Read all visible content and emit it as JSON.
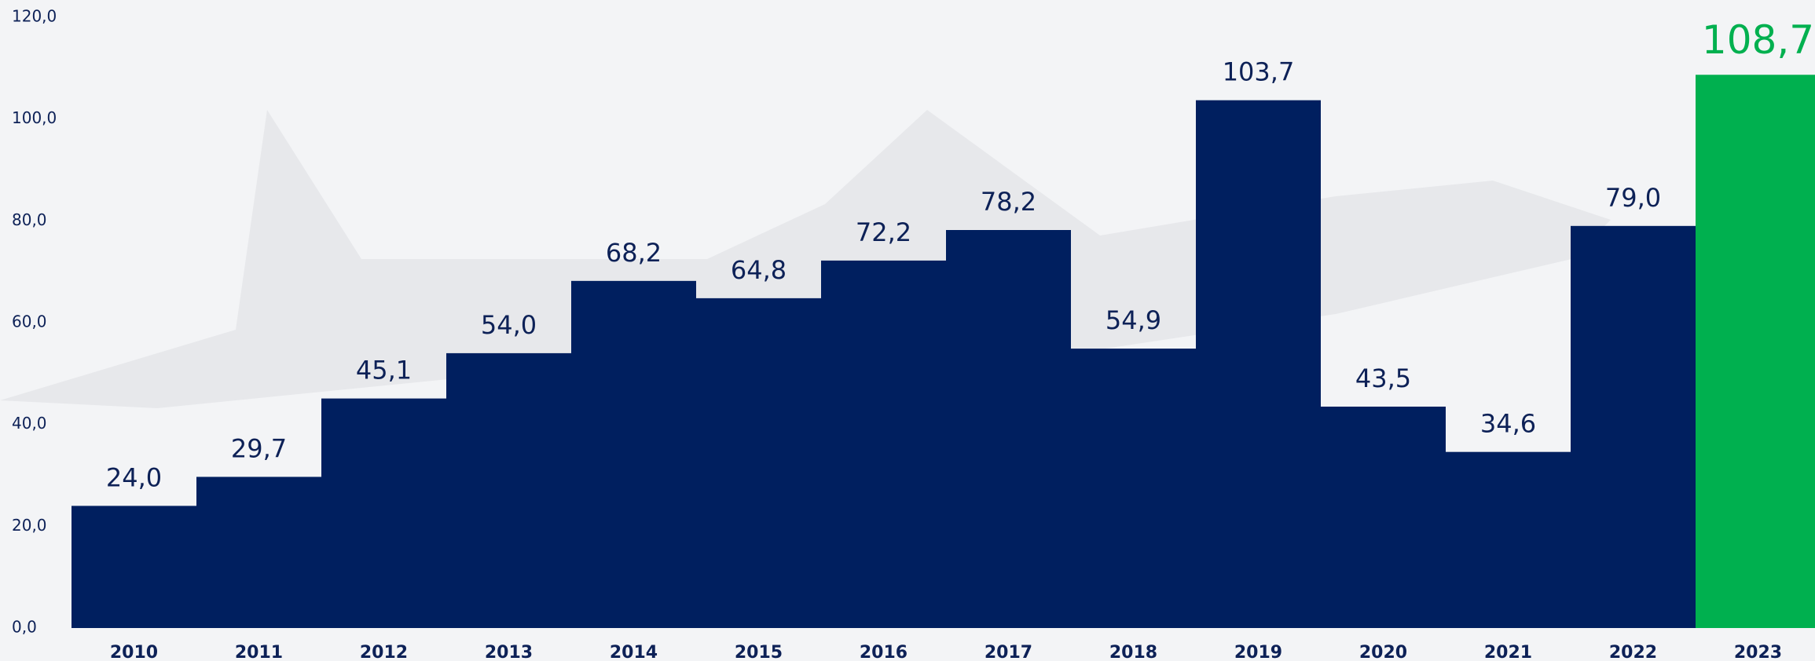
{
  "chart_data": {
    "type": "bar",
    "categories": [
      "2010",
      "2011",
      "2012",
      "2013",
      "2014",
      "2015",
      "2016",
      "2017",
      "2018",
      "2019",
      "2020",
      "2021",
      "2022",
      "2023"
    ],
    "values": [
      24.0,
      29.7,
      45.1,
      54.0,
      68.2,
      64.8,
      72.2,
      78.2,
      54.9,
      103.7,
      43.5,
      34.6,
      79.0,
      108.7
    ],
    "value_labels": [
      "24,0",
      "29,7",
      "45,1",
      "54,0",
      "68,2",
      "64,8",
      "72,2",
      "78,2",
      "54,9",
      "103,7",
      "43,5",
      "34,6",
      "79,0",
      "108,7"
    ],
    "colors": [
      "#001f5f",
      "#001f5f",
      "#001f5f",
      "#001f5f",
      "#001f5f",
      "#001f5f",
      "#001f5f",
      "#001f5f",
      "#001f5f",
      "#001f5f",
      "#001f5f",
      "#001f5f",
      "#001f5f",
      "#00b04f"
    ],
    "ylim": [
      0,
      120
    ],
    "yticks": [
      {
        "value": 0,
        "label": "0,0"
      },
      {
        "value": 20,
        "label": "20,0"
      },
      {
        "value": 40,
        "label": "40,0"
      },
      {
        "value": 60,
        "label": "60,0"
      },
      {
        "value": 80,
        "label": "80,0"
      },
      {
        "value": 100,
        "label": "100,0"
      },
      {
        "value": 120,
        "label": "120,0"
      }
    ]
  }
}
